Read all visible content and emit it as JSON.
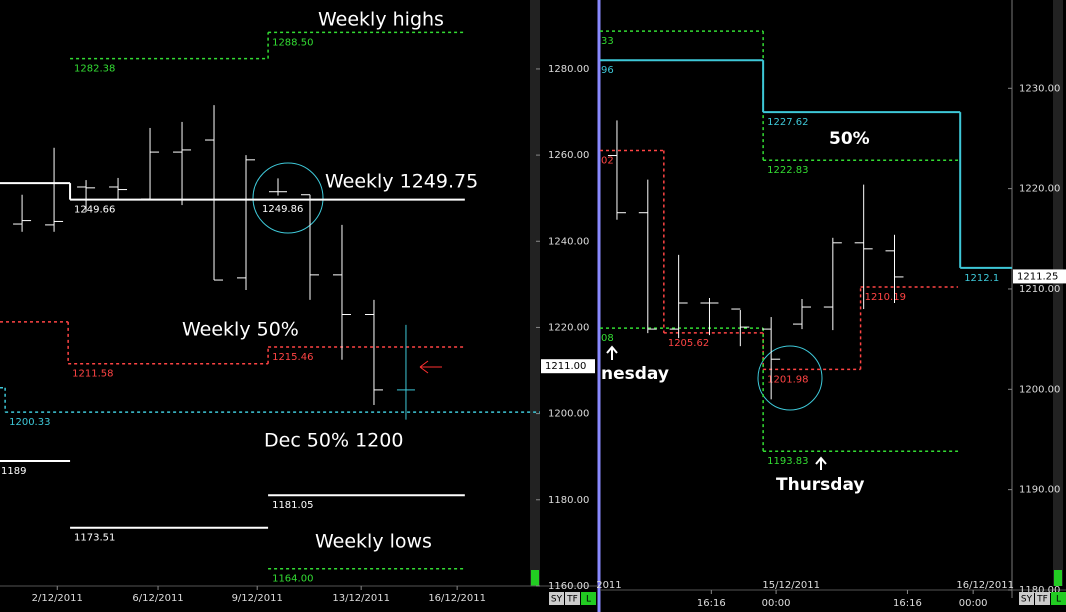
{
  "chart_data": [
    {
      "type": "ohlc",
      "x": [
        0,
        1,
        2,
        3,
        4,
        5,
        6,
        7,
        8,
        9,
        10,
        11,
        12
      ],
      "open": [
        1244.0,
        1243.8,
        1252.6,
        1252.6,
        1249.8,
        1260.7,
        1263.5,
        1231.5,
        1251.5,
        1250.8,
        1232.2,
        1223.0,
        1205.5
      ],
      "high": [
        1250.8,
        1261.7,
        1254.2,
        1254.7,
        1266.3,
        1267.7,
        1271.6,
        1260.0,
        1254.6,
        1250.8,
        1243.8,
        1226.4,
        1220.6
      ],
      "low": [
        1242.2,
        1242.2,
        1246.8,
        1249.6,
        1249.6,
        1248.4,
        1231.0,
        1228.7,
        1250.6,
        1226.4,
        1212.5,
        1202.0,
        1198.6
      ],
      "close": [
        1244.8,
        1244.6,
        1252.4,
        1252.0,
        1260.7,
        1261.2,
        1231.0,
        1258.9,
        1251.5,
        1232.2,
        1223.0,
        1205.5,
        1205.5
      ],
      "bar_colors": [
        "#ffffff",
        "#ffffff",
        "#ffffff",
        "#ffffff",
        "#ffffff",
        "#ffffff",
        "#ffffff",
        "#ffffff",
        "#ffffff",
        "#ffffff",
        "#ffffff",
        "#ffffff",
        "#3ec8d8"
      ],
      "xlim": [
        -0.69,
        16.19
      ],
      "ylim": [
        1157.2,
        1296.0
      ],
      "yticks": [
        {
          "value": 1160,
          "label": "1160.00"
        },
        {
          "value": 1180,
          "label": "1180.00"
        },
        {
          "value": 1200,
          "label": "1200.00"
        },
        {
          "value": 1220,
          "label": "1220.00"
        },
        {
          "value": 1240,
          "label": "1240.00"
        },
        {
          "value": 1260,
          "label": "1260.00"
        },
        {
          "value": 1280,
          "label": "1280.00"
        }
      ],
      "xticks": [
        {
          "value": 1.1,
          "label": "2/12/2011"
        },
        {
          "value": 4.25,
          "label": "6/12/2011"
        },
        {
          "value": 7.35,
          "label": "9/12/2011"
        },
        {
          "value": 10.6,
          "label": "13/12/2011"
        },
        {
          "value": 13.6,
          "label": "16/12/2011"
        }
      ],
      "levels": [
        {
          "color": "#33dd33",
          "dash": true,
          "segments": [
            {
              "x": [
                1.5,
                7.69
              ],
              "value": 1282.38
            },
            {
              "x": [
                7.69,
                13.84
              ],
              "value": 1288.5,
              "label": "1288.50"
            }
          ]
        },
        {
          "color": "#ffffff",
          "dash": false,
          "segments": [
            {
              "x": [
                -0.69,
                1.5
              ],
              "value": 1253.5
            },
            {
              "x": [
                1.5,
                13.84
              ],
              "value": 1249.66
            }
          ]
        },
        {
          "color": "#ff4444",
          "dash": true,
          "segments": [
            {
              "x": [
                -0.69,
                1.44
              ],
              "value": 1221.3
            },
            {
              "x": [
                1.44,
                7.69
              ],
              "value": 1211.58
            },
            {
              "x": [
                7.69,
                13.84
              ],
              "value": 1215.46
            }
          ]
        },
        {
          "color": "#3ec8d8",
          "dash": true,
          "segments": [
            {
              "x": [
                -0.69,
                -0.53
              ],
              "value": 1206.0
            },
            {
              "x": [
                -0.53,
                16.19
              ],
              "value": 1200.33
            }
          ]
        },
        {
          "color": "#ffffff",
          "dash": false,
          "segments": [
            {
              "x": [
                -0.69,
                1.5
              ],
              "value": 1189.0
            }
          ]
        },
        {
          "color": "#ffffff",
          "dash": false,
          "segments": [
            {
              "x": [
                1.5,
                7.69
              ],
              "value": 1173.51
            }
          ]
        },
        {
          "color": "#ffffff",
          "dash": false,
          "segments": [
            {
              "x": [
                7.69,
                13.84
              ],
              "value": 1181.05
            }
          ]
        },
        {
          "color": "#33dd33",
          "dash": true,
          "segments": [
            {
              "x": [
                7.69,
                13.84
              ],
              "value": 1164.0,
              "label": "1164.00"
            }
          ]
        }
      ],
      "extra_labels": [
        {
          "value": 1249.86,
          "x": 8.0
        }
      ],
      "annotations": [
        "Weekly highs",
        "Weekly 1249.75",
        "Weekly 50%",
        "Dec 50% 1200",
        "Weekly lows"
      ],
      "price_marker": {
        "value": 1211.0,
        "label": "1211.00"
      },
      "toolbar": [
        "SY",
        "TF",
        "L"
      ]
    },
    {
      "type": "ohlc",
      "x": [
        0,
        1,
        2,
        3,
        4,
        5,
        6,
        7,
        8,
        9
      ],
      "open": [
        1223.3,
        1217.6,
        1206.0,
        1208.6,
        1208.0,
        1206.0,
        1206.5,
        1208.2,
        1214.6,
        1213.8
      ],
      "high": [
        1226.8,
        1220.9,
        1213.4,
        1209.1,
        1207.9,
        1207.2,
        1209.0,
        1215.1,
        1220.4,
        1215.4
      ],
      "low": [
        1216.9,
        1205.6,
        1205.1,
        1205.4,
        1204.3,
        1199.0,
        1206.0,
        1205.9,
        1208.0,
        1208.6
      ],
      "close": [
        1217.6,
        1206.0,
        1208.6,
        1208.6,
        1206.2,
        1203.0,
        1208.2,
        1214.6,
        1214.0,
        1211.2
      ],
      "bar_colors": [
        "#ffffff",
        "#ffffff",
        "#ffffff",
        "#ffffff",
        "#ffffff",
        "#ffffff",
        "#ffffff",
        "#ffffff",
        "#ffffff",
        "#ffffff"
      ],
      "xlim": [
        -0.55,
        12.81
      ],
      "ylim": [
        1179.2,
        1238.8
      ],
      "yticks": [
        {
          "value": 1180,
          "label": "1180.00"
        },
        {
          "value": 1190,
          "label": "1190.00"
        },
        {
          "value": 1200,
          "label": "1200.00"
        },
        {
          "value": 1210,
          "label": "1210.00"
        },
        {
          "value": 1220,
          "label": "1220.00"
        },
        {
          "value": 1230,
          "label": "1230.00"
        }
      ],
      "xticks": [
        {
          "value": 3.06,
          "label": "16:16"
        },
        {
          "value": 5.16,
          "label": "00:00"
        },
        {
          "value": 9.42,
          "label": "16:16"
        },
        {
          "value": 11.55,
          "label": "00:00"
        }
      ],
      "xdates": [
        {
          "value": -0.26,
          "label": "2011"
        },
        {
          "value": 5.65,
          "label": "15/12/2011"
        },
        {
          "value": 11.94,
          "label": "16/12/2011"
        }
      ],
      "levels": [
        {
          "color": "#33dd33",
          "dash": true,
          "segments": [
            {
              "x": [
                -0.55,
                4.74
              ],
              "value": 1235.7,
              "label": "33"
            },
            {
              "x": [
                4.74,
                11.06
              ],
              "value": 1222.83
            }
          ]
        },
        {
          "color": "#3ec8d8",
          "dash": false,
          "segments": [
            {
              "x": [
                -0.55,
                4.74
              ],
              "value": 1232.8,
              "label": "96"
            },
            {
              "x": [
                4.74,
                11.13
              ],
              "value": 1227.62
            },
            {
              "x": [
                11.13,
                12.81
              ],
              "value": 1212.1
            }
          ]
        },
        {
          "color": "#ff4444",
          "dash": true,
          "segments": [
            {
              "x": [
                -0.55,
                1.52
              ],
              "value": 1223.8,
              "label": "02"
            },
            {
              "x": [
                1.52,
                4.74
              ],
              "value": 1205.62
            },
            {
              "x": [
                4.74,
                7.9
              ],
              "value": 1201.98
            },
            {
              "x": [
                7.9,
                11.06
              ],
              "value": 1210.19
            }
          ]
        },
        {
          "color": "#33dd33",
          "dash": true,
          "segments": [
            {
              "x": [
                -0.55,
                4.74
              ],
              "value": 1206.1,
              "label": "08"
            },
            {
              "x": [
                4.74,
                11.06
              ],
              "value": 1193.83
            }
          ]
        }
      ],
      "annotations": [
        "50%",
        "nesday",
        "Thursday"
      ],
      "price_marker": {
        "value": 1211.25,
        "label": "1211.25"
      },
      "toolbar": [
        "SY",
        "TF",
        "L"
      ]
    }
  ]
}
